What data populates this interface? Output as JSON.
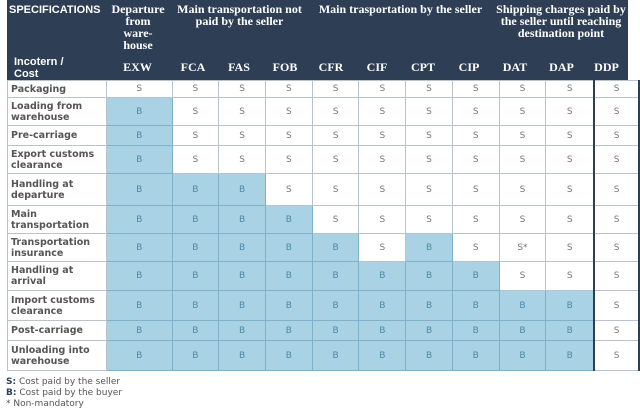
{
  "header": {
    "specifications": "SPECIFICATIONS",
    "row_header": "Incotern / Cost",
    "groups": [
      "Departure from ware-house",
      "Main transportation not paid by the seller",
      "Main trasportation by the seller",
      "Shipping charges paid by the seller until reaching destination point"
    ],
    "columns": [
      "EXW",
      "FCA",
      "FAS",
      "FOB",
      "CFR",
      "CIF",
      "CPT",
      "CIP",
      "DAT",
      "DAP",
      "DDP"
    ]
  },
  "rows": [
    {
      "label": "Packaging",
      "cells": [
        "S",
        "S",
        "S",
        "S",
        "S",
        "S",
        "S",
        "S",
        "S",
        "S",
        "S"
      ]
    },
    {
      "label": "Loading from warehouse",
      "cells": [
        "B",
        "S",
        "S",
        "S",
        "S",
        "S",
        "S",
        "S",
        "S",
        "S",
        "S"
      ]
    },
    {
      "label": "Pre-carriage",
      "cells": [
        "B",
        "S",
        "S",
        "S",
        "S",
        "S",
        "S",
        "S",
        "S",
        "S",
        "S"
      ]
    },
    {
      "label": "Export customs clearance",
      "cells": [
        "B",
        "S",
        "S",
        "S",
        "S",
        "S",
        "S",
        "S",
        "S",
        "S",
        "S"
      ]
    },
    {
      "label": "Handling at departure",
      "cells": [
        "B",
        "B",
        "B",
        "S",
        "S",
        "S",
        "S",
        "S",
        "S",
        "S",
        "S"
      ]
    },
    {
      "label": "Main transportation",
      "cells": [
        "B",
        "B",
        "B",
        "B",
        "S",
        "S",
        "S",
        "S",
        "S",
        "S",
        "S"
      ]
    },
    {
      "label": "Transportation insurance",
      "cells": [
        "B",
        "B",
        "B",
        "B",
        "B",
        "S",
        "B",
        "S",
        "S*",
        "S",
        "S"
      ]
    },
    {
      "label": "Handling at arrival",
      "cells": [
        "B",
        "B",
        "B",
        "B",
        "B",
        "B",
        "B",
        "B",
        "S",
        "S",
        "S"
      ]
    },
    {
      "label": "Import customs clearance",
      "cells": [
        "B",
        "B",
        "B",
        "B",
        "B",
        "B",
        "B",
        "B",
        "B",
        "B",
        "S"
      ]
    },
    {
      "label": "Post-carriage",
      "cells": [
        "B",
        "B",
        "B",
        "B",
        "B",
        "B",
        "B",
        "B",
        "B",
        "B",
        "S"
      ]
    },
    {
      "label": "Unloading into warehouse",
      "cells": [
        "B",
        "B",
        "B",
        "B",
        "B",
        "B",
        "B",
        "B",
        "B",
        "B",
        "S"
      ]
    }
  ],
  "legend": {
    "s_key": "S:",
    "s_text": "Cost paid by the seller",
    "b_key": "B:",
    "b_text": "Cost paid by the buyer",
    "note": "* Non-mandatory"
  },
  "colors": {
    "header_bg": "#2d3e55",
    "buyer_cell": "#a9d2e5"
  }
}
